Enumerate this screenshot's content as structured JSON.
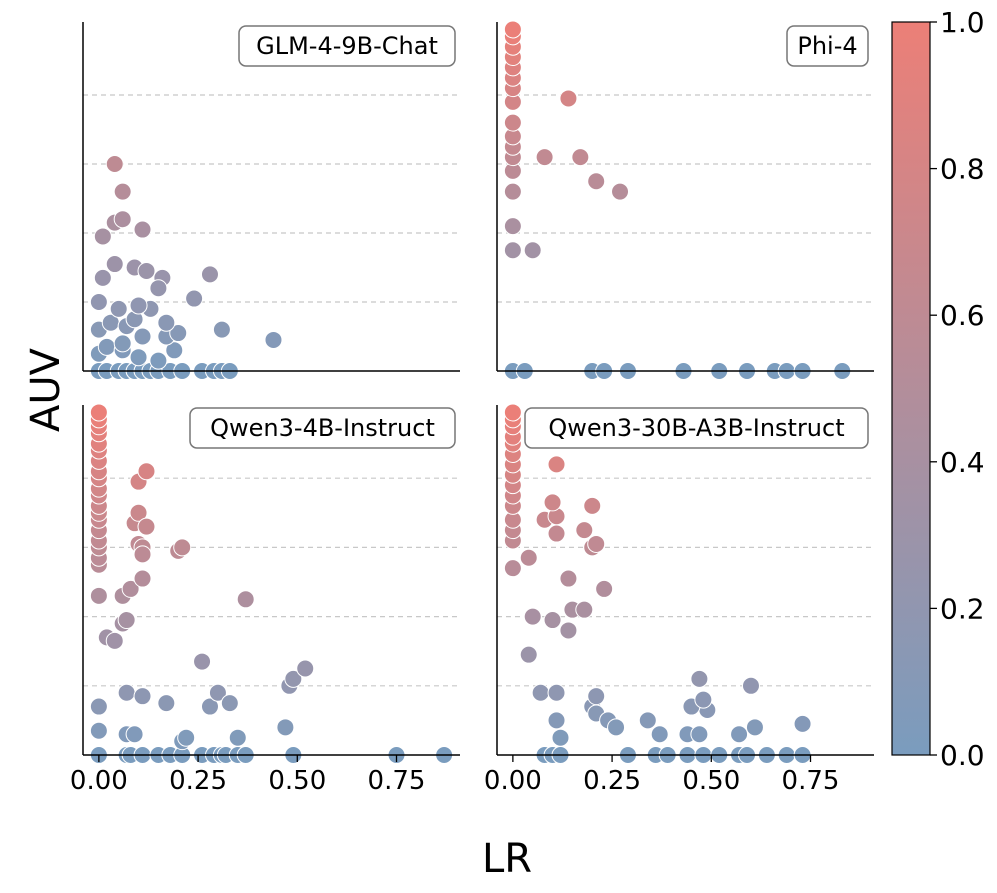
{
  "chart_data": {
    "type": "scatter",
    "xlabel": "LR",
    "ylabel": "AUV",
    "xlim": [
      -0.04,
      0.91
    ],
    "ylim": [
      0,
      1.0
    ],
    "x_ticks": [
      0.0,
      0.25,
      0.5,
      0.75
    ],
    "x_tick_labels": [
      "0.00",
      "0.25",
      "0.50",
      "0.75"
    ],
    "y_gridlines": [
      0.2,
      0.4,
      0.6,
      0.8
    ],
    "colorbar": {
      "min": 0.0,
      "max": 1.0,
      "ticks": [
        0.0,
        0.2,
        0.4,
        0.6,
        0.8,
        1.0
      ],
      "tick_labels": [
        "0.0",
        "0.2",
        "0.4",
        "0.6",
        "0.8",
        "1.0"
      ],
      "low_color": "#7a9cbe",
      "high_color": "#ec7f77"
    },
    "panels": [
      {
        "name": "GLM-4-9B-Chat",
        "points": [
          [
            0.0,
            0.0
          ],
          [
            0.02,
            0.0
          ],
          [
            0.05,
            0.0
          ],
          [
            0.07,
            0.0
          ],
          [
            0.09,
            0.0
          ],
          [
            0.11,
            0.0
          ],
          [
            0.13,
            0.0
          ],
          [
            0.15,
            0.0
          ],
          [
            0.18,
            0.0
          ],
          [
            0.21,
            0.0
          ],
          [
            0.26,
            0.0
          ],
          [
            0.29,
            0.0
          ],
          [
            0.31,
            0.0
          ],
          [
            0.33,
            0.0
          ],
          [
            0.0,
            0.05
          ],
          [
            0.02,
            0.07
          ],
          [
            0.06,
            0.06
          ],
          [
            0.1,
            0.04
          ],
          [
            0.15,
            0.03
          ],
          [
            0.19,
            0.06
          ],
          [
            0.0,
            0.12
          ],
          [
            0.03,
            0.14
          ],
          [
            0.07,
            0.13
          ],
          [
            0.11,
            0.1
          ],
          [
            0.17,
            0.1
          ],
          [
            0.0,
            0.2
          ],
          [
            0.05,
            0.18
          ],
          [
            0.09,
            0.15
          ],
          [
            0.13,
            0.18
          ],
          [
            0.2,
            0.11
          ],
          [
            0.31,
            0.12
          ],
          [
            0.44,
            0.09
          ],
          [
            0.01,
            0.27
          ],
          [
            0.04,
            0.31
          ],
          [
            0.09,
            0.3
          ],
          [
            0.12,
            0.29
          ],
          [
            0.16,
            0.27
          ],
          [
            0.28,
            0.28
          ],
          [
            0.24,
            0.21
          ],
          [
            0.15,
            0.24
          ],
          [
            0.1,
            0.19
          ],
          [
            0.17,
            0.14
          ],
          [
            0.06,
            0.08
          ],
          [
            0.01,
            0.39
          ],
          [
            0.04,
            0.43
          ],
          [
            0.06,
            0.44
          ],
          [
            0.11,
            0.41
          ],
          [
            0.06,
            0.52
          ],
          [
            0.04,
            0.6
          ]
        ]
      },
      {
        "name": "Phi-4",
        "points": [
          [
            0.0,
            0.0
          ],
          [
            0.03,
            0.0
          ],
          [
            0.2,
            0.0
          ],
          [
            0.23,
            0.0
          ],
          [
            0.29,
            0.0
          ],
          [
            0.43,
            0.0
          ],
          [
            0.52,
            0.0
          ],
          [
            0.59,
            0.0
          ],
          [
            0.66,
            0.0
          ],
          [
            0.69,
            0.0
          ],
          [
            0.73,
            0.0
          ],
          [
            0.83,
            0.0
          ],
          [
            0.0,
            0.35
          ],
          [
            0.05,
            0.35
          ],
          [
            0.0,
            0.42
          ],
          [
            0.0,
            0.52
          ],
          [
            0.0,
            0.58
          ],
          [
            0.0,
            0.62
          ],
          [
            0.0,
            0.65
          ],
          [
            0.0,
            0.68
          ],
          [
            0.0,
            0.72
          ],
          [
            0.0,
            0.78
          ],
          [
            0.0,
            0.82
          ],
          [
            0.0,
            0.85
          ],
          [
            0.0,
            0.88
          ],
          [
            0.0,
            0.91
          ],
          [
            0.0,
            0.94
          ],
          [
            0.0,
            0.97
          ],
          [
            0.0,
            0.99
          ],
          [
            0.08,
            0.62
          ],
          [
            0.14,
            0.79
          ],
          [
            0.17,
            0.62
          ],
          [
            0.21,
            0.55
          ],
          [
            0.27,
            0.52
          ]
        ]
      },
      {
        "name": "Qwen3-4B-Instruct",
        "points": [
          [
            0.0,
            0.0
          ],
          [
            0.07,
            0.0
          ],
          [
            0.08,
            0.0
          ],
          [
            0.11,
            0.0
          ],
          [
            0.15,
            0.0
          ],
          [
            0.18,
            0.0
          ],
          [
            0.21,
            0.0
          ],
          [
            0.26,
            0.0
          ],
          [
            0.29,
            0.0
          ],
          [
            0.31,
            0.0
          ],
          [
            0.32,
            0.0
          ],
          [
            0.35,
            0.0
          ],
          [
            0.37,
            0.0
          ],
          [
            0.49,
            0.0
          ],
          [
            0.75,
            0.0
          ],
          [
            0.87,
            0.0
          ],
          [
            0.0,
            0.07
          ],
          [
            0.07,
            0.06
          ],
          [
            0.09,
            0.06
          ],
          [
            0.21,
            0.04
          ],
          [
            0.22,
            0.05
          ],
          [
            0.35,
            0.05
          ],
          [
            0.47,
            0.08
          ],
          [
            0.0,
            0.14
          ],
          [
            0.07,
            0.18
          ],
          [
            0.11,
            0.17
          ],
          [
            0.17,
            0.15
          ],
          [
            0.28,
            0.14
          ],
          [
            0.3,
            0.18
          ],
          [
            0.33,
            0.15
          ],
          [
            0.26,
            0.27
          ],
          [
            0.48,
            0.2
          ],
          [
            0.49,
            0.22
          ],
          [
            0.52,
            0.25
          ],
          [
            0.02,
            0.34
          ],
          [
            0.04,
            0.33
          ],
          [
            0.06,
            0.38
          ],
          [
            0.07,
            0.39
          ],
          [
            0.0,
            0.46
          ],
          [
            0.06,
            0.46
          ],
          [
            0.08,
            0.48
          ],
          [
            0.11,
            0.51
          ],
          [
            0.37,
            0.45
          ],
          [
            0.1,
            0.61
          ],
          [
            0.11,
            0.6
          ],
          [
            0.11,
            0.58
          ],
          [
            0.2,
            0.59
          ],
          [
            0.21,
            0.6
          ],
          [
            0.09,
            0.67
          ],
          [
            0.1,
            0.7
          ],
          [
            0.12,
            0.66
          ],
          [
            0.1,
            0.79
          ],
          [
            0.12,
            0.82
          ],
          [
            0.0,
            0.55
          ],
          [
            0.0,
            0.57
          ],
          [
            0.0,
            0.6
          ],
          [
            0.0,
            0.62
          ],
          [
            0.0,
            0.65
          ],
          [
            0.0,
            0.68
          ],
          [
            0.0,
            0.7
          ],
          [
            0.0,
            0.72
          ],
          [
            0.0,
            0.75
          ],
          [
            0.0,
            0.77
          ],
          [
            0.0,
            0.8
          ],
          [
            0.0,
            0.82
          ],
          [
            0.0,
            0.85
          ],
          [
            0.0,
            0.88
          ],
          [
            0.0,
            0.9
          ],
          [
            0.0,
            0.93
          ],
          [
            0.0,
            0.95
          ],
          [
            0.0,
            0.97
          ],
          [
            0.0,
            0.99
          ]
        ]
      },
      {
        "name": "Qwen3-30B-A3B-Instruct",
        "points": [
          [
            0.08,
            0.0
          ],
          [
            0.1,
            0.0
          ],
          [
            0.12,
            0.0
          ],
          [
            0.29,
            0.0
          ],
          [
            0.36,
            0.0
          ],
          [
            0.39,
            0.0
          ],
          [
            0.44,
            0.0
          ],
          [
            0.48,
            0.0
          ],
          [
            0.52,
            0.0
          ],
          [
            0.57,
            0.0
          ],
          [
            0.59,
            0.0
          ],
          [
            0.64,
            0.0
          ],
          [
            0.69,
            0.0
          ],
          [
            0.73,
            0.0
          ],
          [
            0.12,
            0.05
          ],
          [
            0.11,
            0.1
          ],
          [
            0.2,
            0.14
          ],
          [
            0.21,
            0.12
          ],
          [
            0.24,
            0.1
          ],
          [
            0.26,
            0.08
          ],
          [
            0.34,
            0.1
          ],
          [
            0.37,
            0.06
          ],
          [
            0.44,
            0.06
          ],
          [
            0.47,
            0.06
          ],
          [
            0.49,
            0.13
          ],
          [
            0.57,
            0.06
          ],
          [
            0.61,
            0.08
          ],
          [
            0.73,
            0.09
          ],
          [
            0.07,
            0.18
          ],
          [
            0.11,
            0.18
          ],
          [
            0.21,
            0.17
          ],
          [
            0.45,
            0.14
          ],
          [
            0.48,
            0.16
          ],
          [
            0.47,
            0.22
          ],
          [
            0.6,
            0.2
          ],
          [
            0.04,
            0.29
          ],
          [
            0.05,
            0.4
          ],
          [
            0.1,
            0.39
          ],
          [
            0.14,
            0.36
          ],
          [
            0.15,
            0.42
          ],
          [
            0.18,
            0.42
          ],
          [
            0.14,
            0.51
          ],
          [
            0.23,
            0.48
          ],
          [
            0.0,
            0.54
          ],
          [
            0.04,
            0.57
          ],
          [
            0.08,
            0.68
          ],
          [
            0.11,
            0.64
          ],
          [
            0.11,
            0.69
          ],
          [
            0.18,
            0.65
          ],
          [
            0.2,
            0.6
          ],
          [
            0.21,
            0.61
          ],
          [
            0.1,
            0.73
          ],
          [
            0.2,
            0.72
          ],
          [
            0.11,
            0.84
          ],
          [
            0.0,
            0.62
          ],
          [
            0.0,
            0.65
          ],
          [
            0.0,
            0.68
          ],
          [
            0.0,
            0.72
          ],
          [
            0.0,
            0.75
          ],
          [
            0.0,
            0.78
          ],
          [
            0.0,
            0.81
          ],
          [
            0.0,
            0.84
          ],
          [
            0.0,
            0.87
          ],
          [
            0.0,
            0.9
          ],
          [
            0.0,
            0.92
          ],
          [
            0.0,
            0.95
          ],
          [
            0.0,
            0.97
          ],
          [
            0.0,
            0.99
          ]
        ]
      }
    ]
  }
}
